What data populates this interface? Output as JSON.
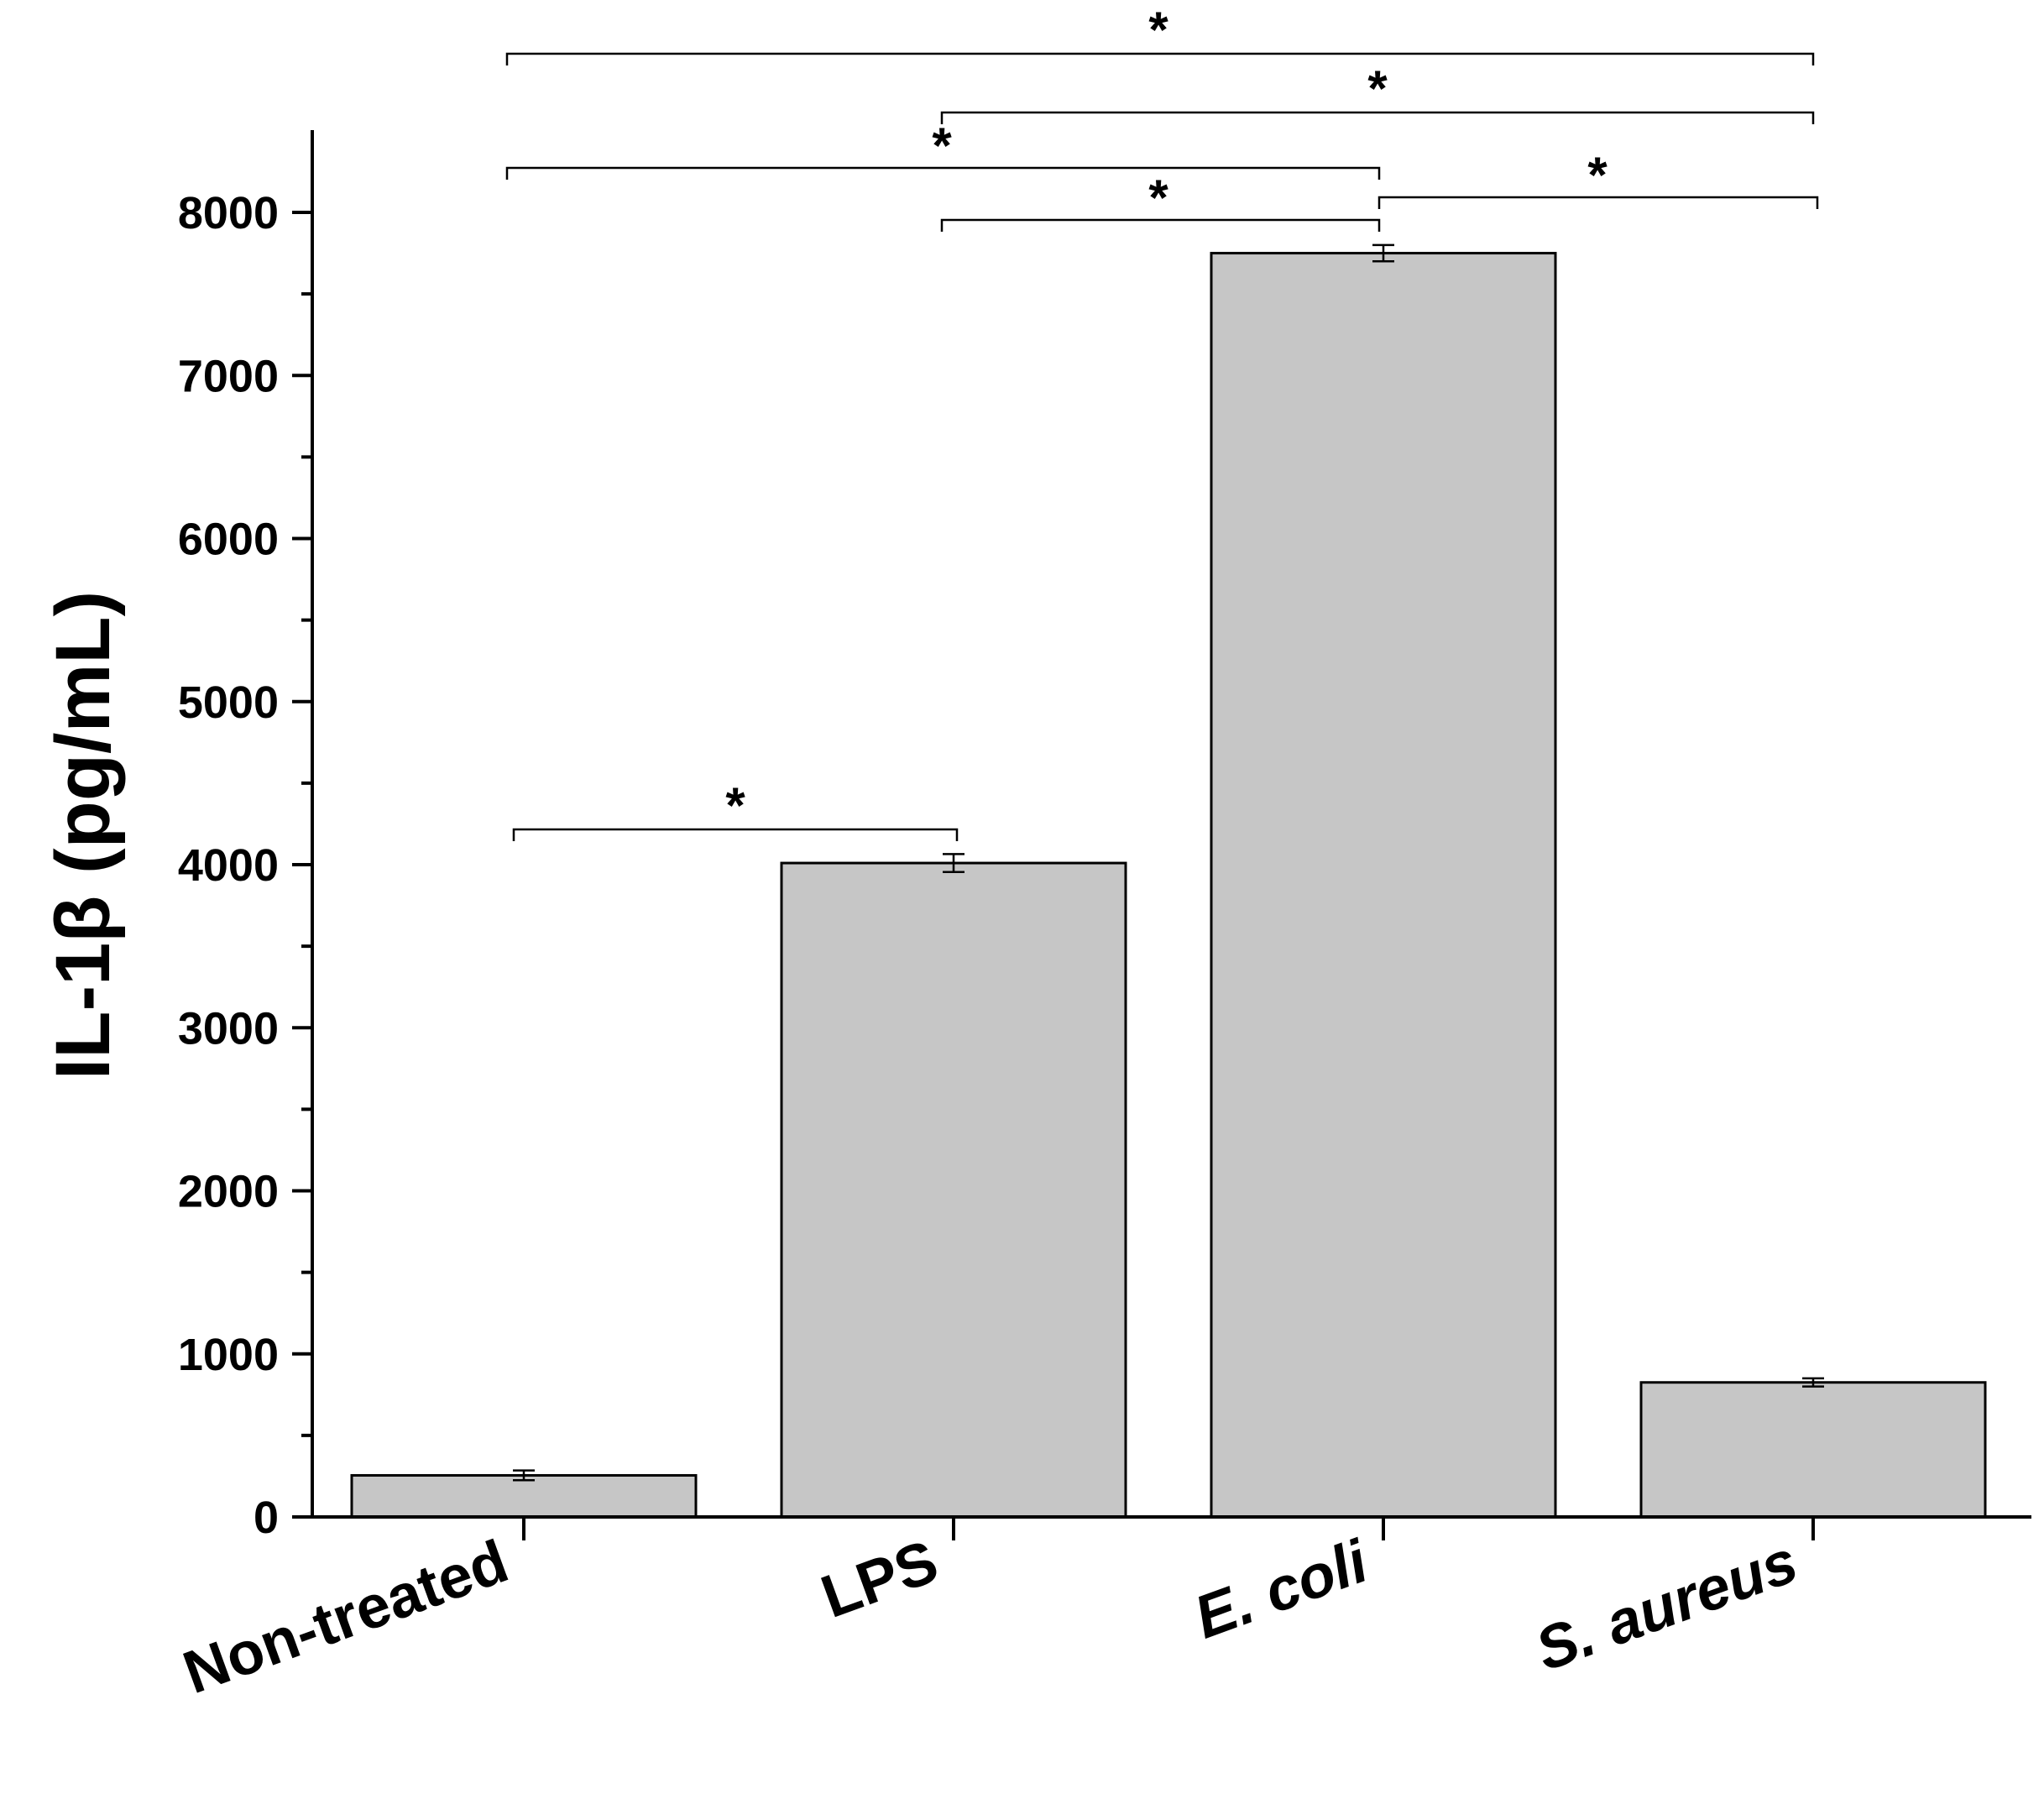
{
  "chart_data": {
    "type": "bar",
    "title": "",
    "xlabel": "",
    "ylabel": "IL-1β (pg/mL)",
    "ylim": [
      0,
      8500
    ],
    "yticks": [
      0,
      1000,
      2000,
      3000,
      4000,
      5000,
      6000,
      7000,
      8000
    ],
    "ytick_labels": [
      "0",
      "1000",
      "2000",
      "3000",
      "4000",
      "5000",
      "6000",
      "7000",
      "8000"
    ],
    "categories": [
      "Non-treated",
      "LPS",
      "E. coli",
      "S. aureus"
    ],
    "italic_categories": [
      false,
      false,
      true,
      true
    ],
    "values": [
      255,
      4010,
      7750,
      825
    ],
    "errors": [
      30,
      55,
      50,
      25
    ],
    "bar_color": "#c6c6c6",
    "grid": false,
    "significance": [
      {
        "from": 0,
        "to": 1,
        "label": "*"
      },
      {
        "from": 1,
        "to": 2,
        "label": "*"
      },
      {
        "from": 2,
        "to": 3,
        "label": "*"
      },
      {
        "from": 0,
        "to": 2,
        "label": "*"
      },
      {
        "from": 1,
        "to": 3,
        "label": "*"
      },
      {
        "from": 0,
        "to": 3,
        "label": "*"
      }
    ]
  }
}
